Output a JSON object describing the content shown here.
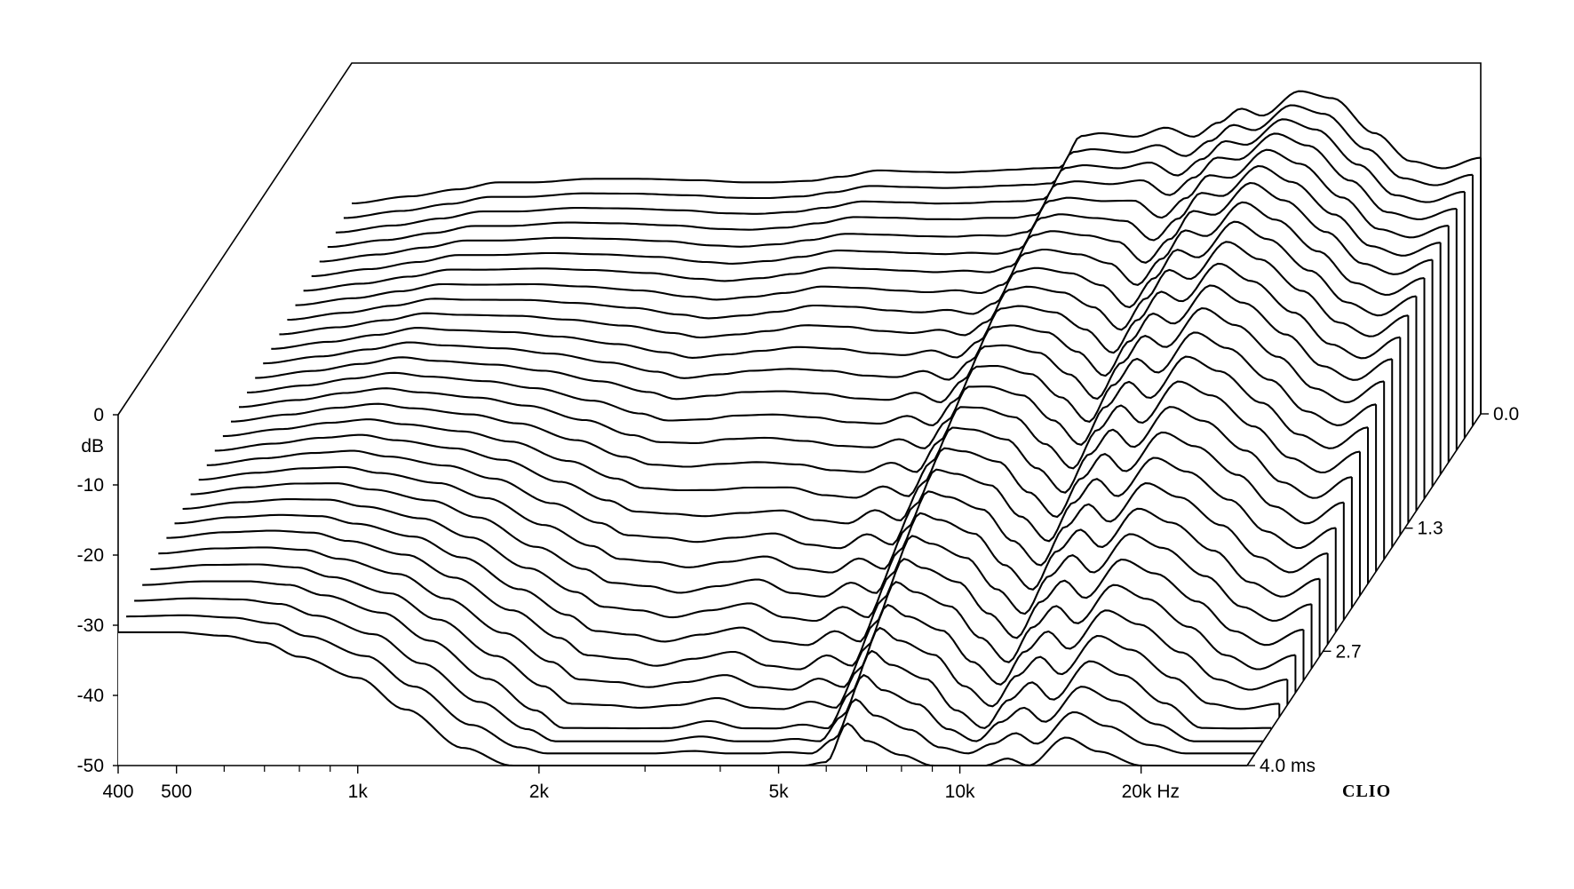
{
  "chart_data": {
    "type": "waterfall",
    "title": "",
    "x_axis": {
      "scale": "log",
      "range": [
        400,
        30000
      ],
      "ticks": [
        {
          "value": 400,
          "label": "400"
        },
        {
          "value": 500,
          "label": "500"
        },
        {
          "value": 1000,
          "label": "1k"
        },
        {
          "value": 2000,
          "label": "2k"
        },
        {
          "value": 5000,
          "label": "5k"
        },
        {
          "value": 10000,
          "label": "10k"
        },
        {
          "value": 20000,
          "label": "20k Hz"
        }
      ],
      "minor_ticks": [
        600,
        700,
        800,
        900,
        3000,
        4000,
        6000,
        7000,
        8000,
        9000
      ]
    },
    "y_axis": {
      "unit_label": "dB",
      "range": [
        -50,
        0
      ],
      "ticks": [
        {
          "value": 0,
          "label": "0"
        },
        {
          "value": -10,
          "label": "-10"
        },
        {
          "value": -20,
          "label": "-20"
        },
        {
          "value": -30,
          "label": "-30"
        },
        {
          "value": -40,
          "label": "-40"
        },
        {
          "value": -50,
          "label": "-50"
        }
      ]
    },
    "time_axis": {
      "range": [
        0,
        4.0
      ],
      "ticks": [
        {
          "value": 0.0,
          "label": "0.0"
        },
        {
          "value": 1.3,
          "label": "1.3"
        },
        {
          "value": 2.7,
          "label": "2.7"
        },
        {
          "value": 4.0,
          "label": "4.0  ms"
        }
      ]
    },
    "slice_count": 30,
    "floor_db": -50,
    "brand": "CLIO",
    "frequency_points_hz": [
      400,
      500,
      600,
      700,
      800,
      1000,
      1200,
      1500,
      1800,
      2000,
      2300,
      2600,
      3000,
      3500,
      4000,
      4500,
      5000,
      5500,
      6000,
      6500,
      7000,
      8000,
      9000,
      10000,
      11000,
      12000,
      13000,
      15000,
      17000,
      20000,
      23000,
      26000,
      30000
    ],
    "series": [
      {
        "time_ms": 0.0,
        "values": [
          -20,
          -19,
          -18,
          -17,
          -17,
          -16.5,
          -16.5,
          -16.7,
          -17,
          -17,
          -16.8,
          -16.2,
          -15.3,
          -15.5,
          -15.6,
          -15.4,
          -15.2,
          -15.0,
          -14.9,
          -10.4,
          -10,
          -10.5,
          -9.2,
          -10.5,
          -8.5,
          -6.5,
          -7.5,
          -4.0,
          -5.0,
          -10.0,
          -14.0,
          -15.0,
          -13.5
        ]
      },
      {
        "time_ms": 0.4,
        "values": [
          -21,
          -20,
          -19,
          -18,
          -18,
          -17.5,
          -17.6,
          -17.9,
          -18.4,
          -18.5,
          -18.2,
          -17.6,
          -16.7,
          -16.8,
          -17,
          -17,
          -16.8,
          -16.8,
          -16.4,
          -12,
          -11.6,
          -12.0,
          -11.4,
          -13.5,
          -11.0,
          -8.2,
          -8.5,
          -4.8,
          -6.5,
          -11.5,
          -16.0,
          -17.0,
          -15.5
        ]
      },
      {
        "time_ms": 0.8,
        "values": [
          -22,
          -21,
          -20,
          -19,
          -19,
          -18.8,
          -19,
          -19.4,
          -20.2,
          -20.5,
          -20.1,
          -19.5,
          -18.6,
          -18.8,
          -19.0,
          -19.2,
          -19.0,
          -19.2,
          -18.4,
          -14,
          -13.4,
          -14.0,
          -14.8,
          -17.8,
          -14.5,
          -10.5,
          -11.0,
          -6.5,
          -9.0,
          -13.5,
          -18.0,
          -19.5,
          -17.5
        ]
      },
      {
        "time_ms": 1.2,
        "values": [
          -23,
          -22,
          -21,
          -20,
          -20.2,
          -20.3,
          -20.8,
          -21.6,
          -22.6,
          -23.2,
          -22.8,
          -22.3,
          -21.4,
          -21.6,
          -22.2,
          -22.5,
          -22.1,
          -22.8,
          -21.0,
          -16.5,
          -16.0,
          -16.8,
          -18.8,
          -22.0,
          -17.6,
          -13.5,
          -14.8,
          -9.5,
          -12.0,
          -16.5,
          -21.0,
          -23.0,
          -20.0
        ]
      },
      {
        "time_ms": 1.6,
        "values": [
          -24,
          -23,
          -22,
          -21,
          -21.5,
          -22,
          -22.8,
          -24.2,
          -25.6,
          -26.6,
          -26.0,
          -25.5,
          -25.4,
          -25.7,
          -26.4,
          -26.6,
          -25.6,
          -27.0,
          -24.0,
          -19.2,
          -19.0,
          -20.0,
          -23.0,
          -26.5,
          -21.4,
          -17.5,
          -19.0,
          -13.5,
          -16.0,
          -20.5,
          -25.0,
          -27.0,
          -24.0
        ]
      },
      {
        "time_ms": 2.0,
        "values": [
          -25,
          -24,
          -23,
          -22.4,
          -23,
          -23.8,
          -25,
          -27.2,
          -29.5,
          -30.5,
          -30.8,
          -30.2,
          -30.0,
          -30.5,
          -31.2,
          -31.4,
          -30.2,
          -31.5,
          -27.4,
          -22.5,
          -22.5,
          -23.8,
          -27.5,
          -31.0,
          -25.5,
          -22.0,
          -24.5,
          -18.5,
          -20.5,
          -25.0,
          -29.5,
          -31.5,
          -28.5
        ]
      },
      {
        "time_ms": 2.4,
        "values": [
          -26,
          -25,
          -24.2,
          -23.8,
          -24.6,
          -25.8,
          -27.5,
          -30.8,
          -33.5,
          -35.2,
          -35.5,
          -36.0,
          -35.5,
          -35.0,
          -36.5,
          -37.0,
          -35.0,
          -36.5,
          -31.0,
          -26.0,
          -26.5,
          -28.0,
          -32.5,
          -36.0,
          -30.5,
          -27.0,
          -29.5,
          -24.0,
          -26.0,
          -30.0,
          -34.5,
          -37.0,
          -34.0
        ]
      },
      {
        "time_ms": 2.8,
        "values": [
          -27,
          -26,
          -25.5,
          -25.5,
          -26.4,
          -28.0,
          -30.5,
          -34.8,
          -38.0,
          -40.0,
          -40.5,
          -41.5,
          -40.5,
          -39.5,
          -41.5,
          -42.0,
          -40.0,
          -41.5,
          -35.5,
          -30.0,
          -31.0,
          -33.0,
          -37.5,
          -41.0,
          -35.5,
          -32.5,
          -35.0,
          -29.5,
          -31.5,
          -35.5,
          -40.0,
          -42.0,
          -39.5
        ]
      },
      {
        "time_ms": 3.2,
        "values": [
          -28,
          -27.2,
          -27,
          -27.3,
          -28.5,
          -30.5,
          -33.8,
          -38.5,
          -42.5,
          -45.0,
          -45.5,
          -46.5,
          -45.5,
          -44.5,
          -46.5,
          -47.0,
          -45.0,
          -46.5,
          -40.5,
          -34.5,
          -36.0,
          -38.0,
          -42.5,
          -46.0,
          -41.0,
          -38.0,
          -40.5,
          -35.0,
          -37.0,
          -41.0,
          -45.0,
          -47.0,
          -45.0
        ]
      },
      {
        "time_ms": 3.6,
        "values": [
          -29.5,
          -29,
          -29,
          -29.5,
          -31,
          -33.5,
          -37.5,
          -43.0,
          -47.5,
          -50,
          -50,
          -50,
          -50,
          -49.0,
          -50,
          -50,
          -49.5,
          -50,
          -45.0,
          -39.0,
          -41.0,
          -43.0,
          -47.5,
          -50,
          -46.0,
          -43.5,
          -46.0,
          -40.5,
          -42.5,
          -46.5,
          -50,
          -50,
          -50
        ]
      },
      {
        "time_ms": 4.0,
        "values": [
          -31,
          -31,
          -31.5,
          -32.5,
          -34.5,
          -37.5,
          -42.0,
          -47.5,
          -50,
          -50,
          -50,
          -50,
          -50,
          -50,
          -50,
          -50,
          -50,
          -50,
          -49.5,
          -44.0,
          -46.5,
          -48.5,
          -50,
          -50,
          -50,
          -49.0,
          -50,
          -46.0,
          -48.0,
          -50,
          -50,
          -50,
          -50
        ]
      }
    ]
  }
}
